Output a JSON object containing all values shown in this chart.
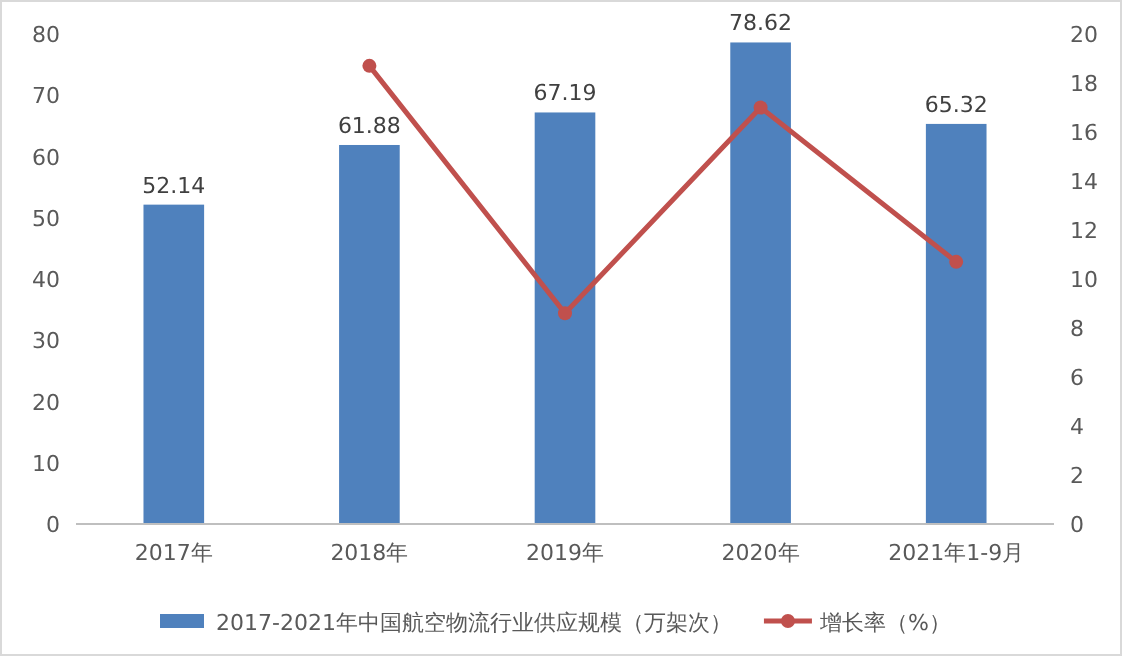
{
  "chart_data": {
    "type": "bar",
    "categories": [
      "2017年",
      "2018年",
      "2019年",
      "2020年",
      "2021年1-9月"
    ],
    "series": [
      {
        "name": "2017-2021年中国航空物流行业供应规模（万架次）",
        "color": "#4f81bd",
        "values": [
          52.14,
          61.88,
          67.19,
          78.62,
          65.32
        ],
        "value_labels": [
          "52.14",
          "61.88",
          "67.19",
          "78.62",
          "65.32"
        ]
      },
      {
        "name": "增长率（%）",
        "type": "line",
        "axis": "y2",
        "color": "#c0504d",
        "marker": "circle",
        "values": [
          null,
          18.7,
          8.6,
          17.0,
          10.7
        ]
      }
    ],
    "ylim": [
      0,
      80
    ],
    "yticks": [
      0,
      10,
      20,
      30,
      40,
      50,
      60,
      70,
      80
    ],
    "y2lim": [
      0,
      20
    ],
    "y2ticks": [
      0,
      2,
      4,
      6,
      8,
      10,
      12,
      14,
      16,
      18,
      20
    ],
    "grid": false,
    "legend": "bottom"
  }
}
